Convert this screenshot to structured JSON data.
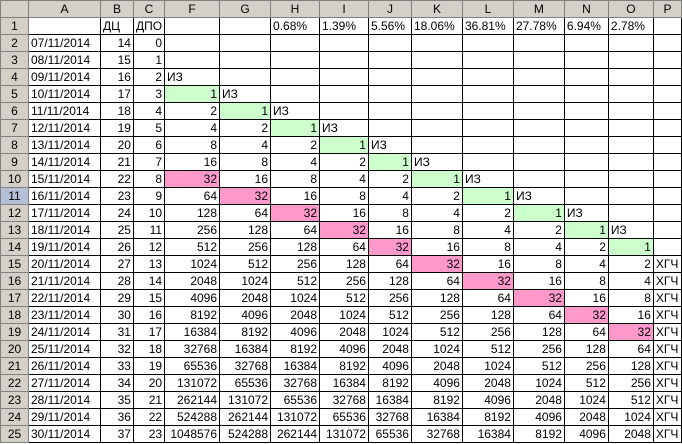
{
  "columns": [
    "",
    "A",
    "B",
    "C",
    "F",
    "G",
    "H",
    "I",
    "J",
    "K",
    "L",
    "M",
    "N",
    "O",
    "P"
  ],
  "selected_row": 11,
  "colors": {
    "green": "#ccffcc",
    "pink": "#ff99cc",
    "header": "#d4d0c8",
    "selected_header": "#b6bfd8"
  },
  "header_row": [
    "",
    "ДЦ",
    "ДПО",
    "",
    "",
    "0.68%",
    "1.39%",
    "5.56%",
    "18.06%",
    "36.81%",
    "27.78%",
    "6.94%",
    "2.78%",
    ""
  ],
  "rows": [
    [
      "07/11/2014",
      "14",
      "0",
      "",
      "",
      "",
      "",
      "",
      "",
      "",
      "",
      "",
      "",
      ""
    ],
    [
      "08/11/2014",
      "15",
      "1",
      "",
      "",
      "",
      "",
      "",
      "",
      "",
      "",
      "",
      "",
      ""
    ],
    [
      "09/11/2014",
      "16",
      "2",
      "ИЗ",
      "",
      "",
      "",
      "",
      "",
      "",
      "",
      "",
      "",
      ""
    ],
    [
      "10/11/2014",
      "17",
      "3",
      "1",
      "ИЗ",
      "",
      "",
      "",
      "",
      "",
      "",
      "",
      "",
      ""
    ],
    [
      "11/11/2014",
      "18",
      "4",
      "2",
      "1",
      "ИЗ",
      "",
      "",
      "",
      "",
      "",
      "",
      "",
      ""
    ],
    [
      "12/11/2014",
      "19",
      "5",
      "4",
      "2",
      "1",
      "ИЗ",
      "",
      "",
      "",
      "",
      "",
      "",
      ""
    ],
    [
      "13/11/2014",
      "20",
      "6",
      "8",
      "4",
      "2",
      "1",
      "ИЗ",
      "",
      "",
      "",
      "",
      "",
      ""
    ],
    [
      "14/11/2014",
      "21",
      "7",
      "16",
      "8",
      "4",
      "2",
      "1",
      "ИЗ",
      "",
      "",
      "",
      "",
      ""
    ],
    [
      "15/11/2014",
      "22",
      "8",
      "32",
      "16",
      "8",
      "4",
      "2",
      "1",
      "ИЗ",
      "",
      "",
      "",
      ""
    ],
    [
      "16/11/2014",
      "23",
      "9",
      "64",
      "32",
      "16",
      "8",
      "4",
      "2",
      "1",
      "ИЗ",
      "",
      "",
      ""
    ],
    [
      "17/11/2014",
      "24",
      "10",
      "128",
      "64",
      "32",
      "16",
      "8",
      "4",
      "2",
      "1",
      "ИЗ",
      "",
      ""
    ],
    [
      "18/11/2014",
      "25",
      "11",
      "256",
      "128",
      "64",
      "32",
      "16",
      "8",
      "4",
      "2",
      "1",
      "ИЗ",
      ""
    ],
    [
      "19/11/2014",
      "26",
      "12",
      "512",
      "256",
      "128",
      "64",
      "32",
      "16",
      "8",
      "4",
      "2",
      "1",
      ""
    ],
    [
      "20/11/2014",
      "27",
      "13",
      "1024",
      "512",
      "256",
      "128",
      "64",
      "32",
      "16",
      "8",
      "4",
      "2",
      "ХГЧ"
    ],
    [
      "21/11/2014",
      "28",
      "14",
      "2048",
      "1024",
      "512",
      "256",
      "128",
      "64",
      "32",
      "16",
      "8",
      "4",
      "ХГЧ"
    ],
    [
      "22/11/2014",
      "29",
      "15",
      "4096",
      "2048",
      "1024",
      "512",
      "256",
      "128",
      "64",
      "32",
      "16",
      "8",
      "ХГЧ"
    ],
    [
      "23/11/2014",
      "30",
      "16",
      "8192",
      "4096",
      "2048",
      "1024",
      "512",
      "256",
      "128",
      "64",
      "32",
      "16",
      "ХГЧ"
    ],
    [
      "24/11/2014",
      "31",
      "17",
      "16384",
      "8192",
      "4096",
      "2048",
      "1024",
      "512",
      "256",
      "128",
      "64",
      "32",
      "ХГЧ"
    ],
    [
      "25/11/2014",
      "32",
      "18",
      "32768",
      "16384",
      "8192",
      "4096",
      "2048",
      "1024",
      "512",
      "256",
      "128",
      "64",
      "ХГЧ"
    ],
    [
      "26/11/2014",
      "33",
      "19",
      "65536",
      "32768",
      "16384",
      "8192",
      "4096",
      "2048",
      "1024",
      "512",
      "256",
      "128",
      "ХГЧ"
    ],
    [
      "27/11/2014",
      "34",
      "20",
      "131072",
      "65536",
      "32768",
      "16384",
      "8192",
      "4096",
      "2048",
      "1024",
      "512",
      "256",
      "ХГЧ"
    ],
    [
      "28/11/2014",
      "35",
      "21",
      "262144",
      "131072",
      "65536",
      "32768",
      "16384",
      "8192",
      "4096",
      "2048",
      "1024",
      "512",
      "ХГЧ"
    ],
    [
      "29/11/2014",
      "36",
      "22",
      "524288",
      "262144",
      "131072",
      "65536",
      "32768",
      "16384",
      "8192",
      "4096",
      "2048",
      "1024",
      "ХГЧ"
    ],
    [
      "30/11/2014",
      "37",
      "23",
      "1048576",
      "524288",
      "262144",
      "131072",
      "65536",
      "32768",
      "16384",
      "8192",
      "4096",
      "2048",
      "ХГЧ"
    ]
  ]
}
